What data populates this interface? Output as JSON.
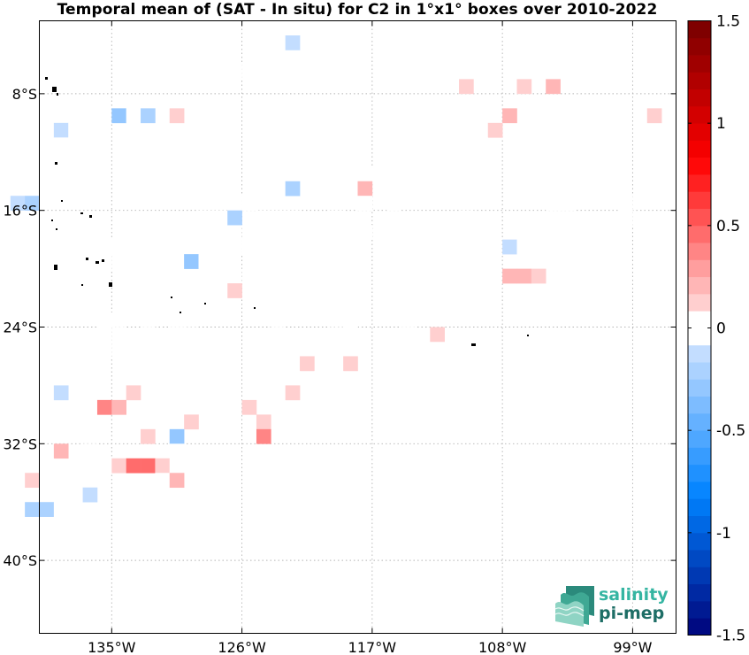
{
  "chart_data": {
    "type": "heatmap",
    "title": "Temporal mean of (SAT - In situ) for C2 in 1°x1° boxes over 2010-2022",
    "x_ticks": [
      "135°W",
      "126°W",
      "117°W",
      "108°W",
      "99°W"
    ],
    "y_ticks": [
      "8°S",
      "16°S",
      "24°S",
      "32°S",
      "40°S"
    ],
    "xlim_lon": [
      -140,
      -96
    ],
    "ylim_lat": [
      -45,
      -3
    ],
    "grid": true,
    "colorbar": {
      "ticks": [
        "1.5",
        "1",
        "0.5",
        "0",
        "-0.5",
        "-1",
        "-1.5"
      ],
      "range": [
        -1.5,
        1.5
      ]
    },
    "cells": [
      [
        -122.5,
        -4.5,
        -0.12
      ],
      [
        -110.5,
        -4.5,
        -0.06
      ],
      [
        -104.5,
        -4.5,
        0.06
      ],
      [
        -126.5,
        -6.5,
        -0.06
      ],
      [
        -102.5,
        -6.5,
        0.06
      ],
      [
        -110.5,
        -7.5,
        0.12
      ],
      [
        -106.5,
        -7.5,
        0.12
      ],
      [
        -104.5,
        -7.5,
        0.18
      ],
      [
        -136.5,
        -9.5,
        -0.06
      ],
      [
        -134.5,
        -9.5,
        -0.28
      ],
      [
        -133.5,
        -9.5,
        -0.06
      ],
      [
        -132.5,
        -9.5,
        -0.18
      ],
      [
        -130.5,
        -9.5,
        0.1
      ],
      [
        -107.5,
        -9.5,
        0.22
      ],
      [
        -97.5,
        -9.5,
        0.1
      ],
      [
        -138.5,
        -10.5,
        -0.12
      ],
      [
        -137.5,
        -10.5,
        -0.06
      ],
      [
        -136.5,
        -10.5,
        -0.06
      ],
      [
        -112.5,
        -10.5,
        -0.06
      ],
      [
        -111.5,
        -10.5,
        0.06
      ],
      [
        -109.5,
        -10.5,
        -0.06
      ],
      [
        -108.5,
        -10.5,
        0.12
      ],
      [
        -138.5,
        -11.5,
        -0.06
      ],
      [
        -109.5,
        -11.5,
        0.06
      ],
      [
        -103.5,
        -11.5,
        0.06
      ],
      [
        -100.5,
        -11.5,
        -0.06
      ],
      [
        -97.5,
        -11.5,
        -0.06
      ],
      [
        -141.5,
        -12.5,
        -0.06
      ],
      [
        -130.5,
        -12.5,
        -0.06
      ],
      [
        -110.5,
        -12.5,
        0.06
      ],
      [
        -109.5,
        -12.5,
        0.06
      ],
      [
        -101.5,
        -12.5,
        -0.06
      ],
      [
        -121.5,
        -13.5,
        -0.06
      ],
      [
        -118.5,
        -13.5,
        0.06
      ],
      [
        -117.5,
        -13.5,
        -0.06
      ],
      [
        -116.5,
        -13.5,
        -0.06
      ],
      [
        -102.5,
        -13.5,
        -0.06
      ],
      [
        -139.5,
        -14.5,
        -0.06
      ],
      [
        -138.5,
        -14.5,
        -0.06
      ],
      [
        -123.5,
        -14.5,
        -0.06
      ],
      [
        -122.5,
        -14.5,
        -0.2
      ],
      [
        -117.5,
        -14.5,
        0.2
      ],
      [
        -103.5,
        -14.5,
        -0.06
      ],
      [
        -141.5,
        -15.5,
        -0.12
      ],
      [
        -140.5,
        -15.5,
        -0.2
      ],
      [
        -126.5,
        -15.5,
        -0.06
      ],
      [
        -125.5,
        -15.5,
        -0.06
      ],
      [
        -117.5,
        -15.5,
        0.06
      ],
      [
        -115.5,
        -15.5,
        -0.06
      ],
      [
        -104.5,
        -15.5,
        0.06
      ],
      [
        -103.5,
        -15.5,
        -0.06
      ],
      [
        -99.5,
        -15.5,
        -0.06
      ],
      [
        -128.5,
        -16.5,
        -0.06
      ],
      [
        -127.5,
        -16.5,
        -0.06
      ],
      [
        -126.5,
        -16.5,
        -0.2
      ],
      [
        -124.5,
        -16.5,
        0.06
      ],
      [
        -123.5,
        -16.5,
        0.06
      ],
      [
        -122.5,
        -16.5,
        0.06
      ],
      [
        -119.5,
        -16.5,
        0.06
      ],
      [
        -110.5,
        -16.5,
        -0.06
      ],
      [
        -99.5,
        -16.5,
        -0.06
      ],
      [
        -128.5,
        -17.5,
        -0.06
      ],
      [
        -125.5,
        -17.5,
        -0.06
      ],
      [
        -121.5,
        -17.5,
        0.06
      ],
      [
        -117.5,
        -17.5,
        -0.06
      ],
      [
        -135.5,
        -18.5,
        0.06
      ],
      [
        -134.5,
        -18.5,
        0.06
      ],
      [
        -133.5,
        -18.5,
        0.06
      ],
      [
        -132.5,
        -18.5,
        0.06
      ],
      [
        -126.5,
        -18.5,
        0.06
      ],
      [
        -125.5,
        -18.5,
        -0.06
      ],
      [
        -107.5,
        -18.5,
        -0.12
      ],
      [
        -106.5,
        -18.5,
        -0.06
      ],
      [
        -101.5,
        -18.5,
        -0.06
      ],
      [
        -135.5,
        -19.5,
        0.06
      ],
      [
        -129.5,
        -19.5,
        -0.28
      ],
      [
        -128.5,
        -19.5,
        -0.06
      ],
      [
        -104.5,
        -19.5,
        0.06
      ],
      [
        -103.5,
        -19.5,
        0.06
      ],
      [
        -101.5,
        -19.5,
        -0.06
      ],
      [
        -125.5,
        -20.5,
        -0.06
      ],
      [
        -115.5,
        -20.5,
        -0.06
      ],
      [
        -107.5,
        -20.5,
        0.22
      ],
      [
        -106.5,
        -20.5,
        0.22
      ],
      [
        -105.5,
        -20.5,
        0.12
      ],
      [
        -132.5,
        -21.5,
        -0.06
      ],
      [
        -131.5,
        -21.5,
        -0.06
      ],
      [
        -126.5,
        -21.5,
        0.12
      ],
      [
        -124.5,
        -21.5,
        -0.06
      ],
      [
        -114.5,
        -21.5,
        -0.06
      ],
      [
        -113.5,
        -21.5,
        -0.06
      ],
      [
        -118.5,
        -22.5,
        -0.06
      ],
      [
        -114.5,
        -22.5,
        -0.06
      ],
      [
        -113.5,
        -22.5,
        -0.06
      ],
      [
        -112.5,
        -22.5,
        -0.06
      ],
      [
        -135.5,
        -23.5,
        -0.06
      ],
      [
        -134.5,
        -23.5,
        -0.06
      ],
      [
        -132.5,
        -23.5,
        0.06
      ],
      [
        -130.5,
        -23.5,
        -0.06
      ],
      [
        -123.5,
        -23.5,
        0.06
      ],
      [
        -118.5,
        -23.5,
        -0.06
      ],
      [
        -114.5,
        -23.5,
        0.06
      ],
      [
        -135.5,
        -24.5,
        -0.06
      ],
      [
        -129.5,
        -24.5,
        -0.06
      ],
      [
        -119.5,
        -24.5,
        -0.06
      ],
      [
        -118.5,
        -24.5,
        -0.06
      ],
      [
        -112.5,
        -24.5,
        0.12
      ],
      [
        -137.5,
        -25.5,
        -0.06
      ],
      [
        -135.5,
        -25.5,
        -0.06
      ],
      [
        -132.5,
        -25.5,
        -0.06
      ],
      [
        -122.5,
        -25.5,
        -0.06
      ],
      [
        -120.5,
        -25.5,
        -0.06
      ],
      [
        -136.5,
        -26.5,
        -0.06
      ],
      [
        -121.5,
        -26.5,
        0.12
      ],
      [
        -119.5,
        -26.5,
        0.06
      ],
      [
        -118.5,
        -26.5,
        0.12
      ],
      [
        -136.5,
        -27.5,
        -0.06
      ],
      [
        -124.5,
        -27.5,
        0.06
      ],
      [
        -123.5,
        -27.5,
        0.06
      ],
      [
        -122.5,
        -27.5,
        0.06
      ],
      [
        -120.5,
        -27.5,
        0.06
      ],
      [
        -119.5,
        -27.5,
        -0.06
      ],
      [
        -138.5,
        -28.5,
        -0.12
      ],
      [
        -133.5,
        -28.5,
        0.12
      ],
      [
        -123.5,
        -28.5,
        0.06
      ],
      [
        -122.5,
        -28.5,
        0.12
      ],
      [
        -135.5,
        -29.5,
        0.38
      ],
      [
        -134.5,
        -29.5,
        0.2
      ],
      [
        -131.5,
        -29.5,
        -0.06
      ],
      [
        -125.5,
        -29.5,
        0.12
      ],
      [
        -131.5,
        -30.5,
        -0.06
      ],
      [
        -129.5,
        -30.5,
        0.12
      ],
      [
        -124.5,
        -30.5,
        0.12
      ],
      [
        -132.5,
        -31.5,
        0.12
      ],
      [
        -130.5,
        -31.5,
        -0.28
      ],
      [
        -124.5,
        -31.5,
        0.38
      ],
      [
        -138.5,
        -32.5,
        0.22
      ],
      [
        -136.5,
        -32.5,
        -0.06
      ],
      [
        -130.5,
        -32.5,
        0.06
      ],
      [
        -140.5,
        -33.5,
        -0.06
      ],
      [
        -139.5,
        -33.5,
        -0.06
      ],
      [
        -136.5,
        -33.5,
        -0.06
      ],
      [
        -135.5,
        -33.5,
        0.06
      ],
      [
        -134.5,
        -33.5,
        0.12
      ],
      [
        -133.5,
        -33.5,
        0.48
      ],
      [
        -132.5,
        -33.5,
        0.48
      ],
      [
        -131.5,
        -33.5,
        0.12
      ],
      [
        -130.5,
        -33.5,
        0.06
      ],
      [
        -140.5,
        -34.5,
        0.1
      ],
      [
        -138.5,
        -34.5,
        0.06
      ],
      [
        -136.5,
        -34.5,
        -0.06
      ],
      [
        -131.5,
        -34.5,
        0.06
      ],
      [
        -130.5,
        -34.5,
        0.2
      ],
      [
        -136.5,
        -35.5,
        -0.12
      ],
      [
        -140.5,
        -36.5,
        -0.2
      ],
      [
        -139.5,
        -36.5,
        -0.2
      ],
      [
        -138.5,
        -36.5,
        -0.06
      ]
    ]
  },
  "logo": {
    "line1": "salinity",
    "line2": "pi-mep"
  }
}
